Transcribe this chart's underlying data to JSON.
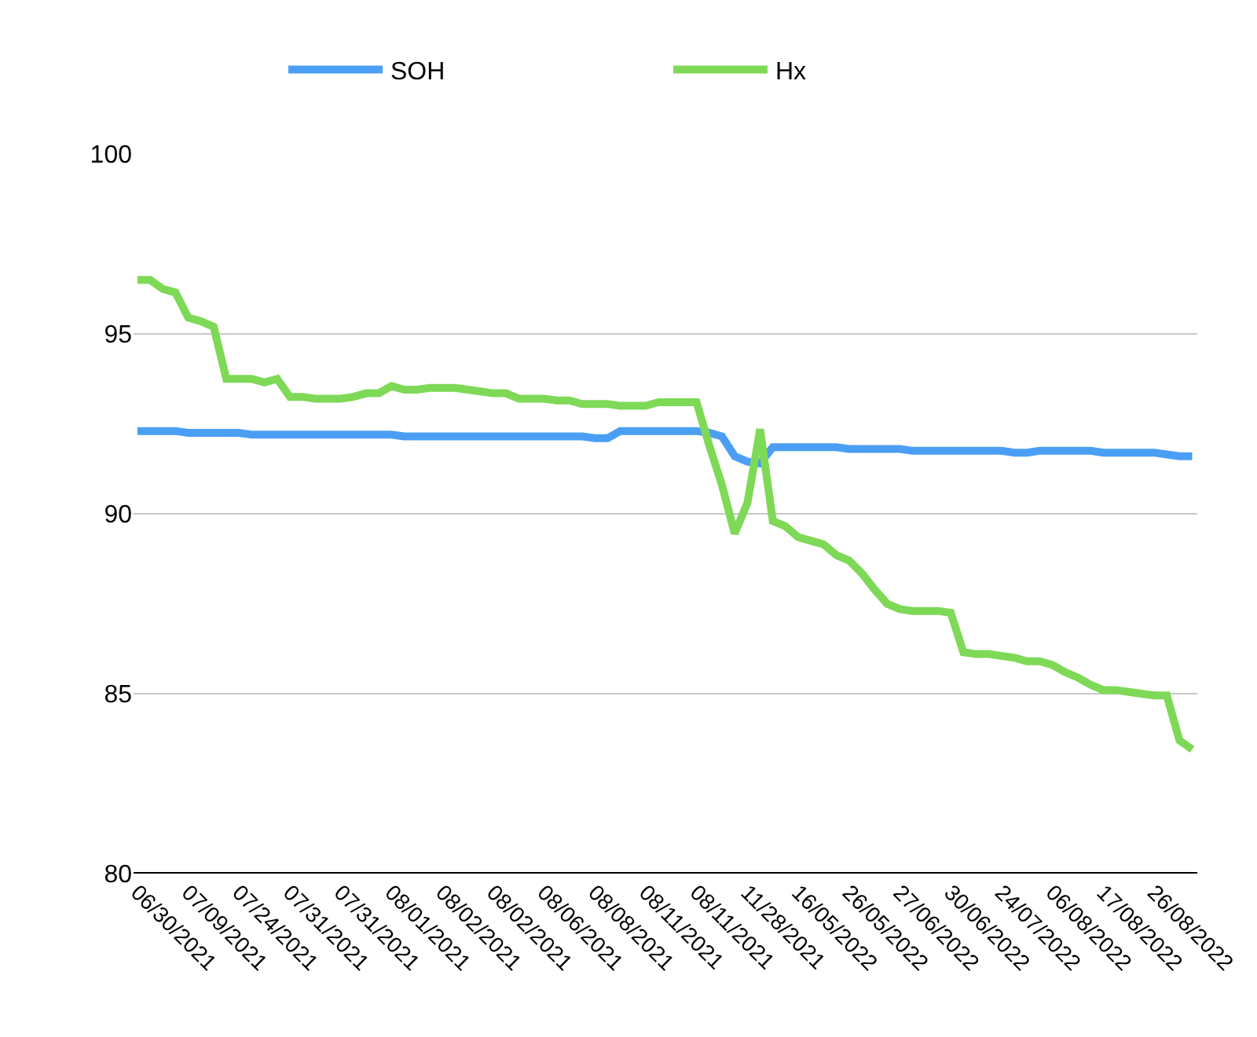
{
  "chart_data": {
    "type": "line",
    "categories": [
      "06/30/2021",
      null,
      null,
      null,
      "07/09/2021",
      null,
      null,
      null,
      "07/24/2021",
      null,
      null,
      null,
      "07/31/2021",
      null,
      null,
      null,
      "07/31/2021",
      null,
      null,
      null,
      "08/01/2021",
      null,
      null,
      null,
      "08/02/2021",
      null,
      null,
      null,
      "08/02/2021",
      null,
      null,
      null,
      "08/06/2021",
      null,
      null,
      null,
      "08/08/2021",
      null,
      null,
      null,
      "08/11/2021",
      null,
      null,
      null,
      "08/11/2021",
      null,
      null,
      null,
      "11/28/2021",
      null,
      null,
      null,
      "16/05/2022",
      null,
      null,
      null,
      "26/05/2022",
      null,
      null,
      null,
      "27/06/2022",
      null,
      null,
      null,
      "30/06/2022",
      null,
      null,
      null,
      "24/07/2022",
      null,
      null,
      null,
      "06/08/2022",
      null,
      null,
      null,
      "17/08/2022",
      null,
      null,
      null,
      "26/08/2022",
      null,
      null,
      null
    ],
    "series": [
      {
        "name": "SOH",
        "color": "#4a9ff5",
        "values": [
          92.3,
          92.3,
          92.3,
          92.3,
          92.25,
          92.25,
          92.25,
          92.25,
          92.25,
          92.2,
          92.2,
          92.2,
          92.2,
          92.2,
          92.2,
          92.2,
          92.2,
          92.2,
          92.2,
          92.2,
          92.2,
          92.15,
          92.15,
          92.15,
          92.15,
          92.15,
          92.15,
          92.15,
          92.15,
          92.15,
          92.15,
          92.15,
          92.15,
          92.15,
          92.15,
          92.15,
          92.1,
          92.1,
          92.3,
          92.3,
          92.3,
          92.3,
          92.3,
          92.3,
          92.3,
          92.25,
          92.15,
          91.6,
          91.45,
          91.4,
          91.85,
          91.85,
          91.85,
          91.85,
          91.85,
          91.85,
          91.8,
          91.8,
          91.8,
          91.8,
          91.8,
          91.75,
          91.75,
          91.75,
          91.75,
          91.75,
          91.75,
          91.75,
          91.75,
          91.7,
          91.7,
          91.75,
          91.75,
          91.75,
          91.75,
          91.75,
          91.7,
          91.7,
          91.7,
          91.7,
          91.7,
          91.65,
          91.6,
          91.6
        ]
      },
      {
        "name": "Hx",
        "color": "#7ed957",
        "values": [
          96.5,
          96.5,
          96.25,
          96.15,
          95.45,
          95.35,
          95.2,
          93.75,
          93.75,
          93.75,
          93.65,
          93.75,
          93.25,
          93.25,
          93.2,
          93.2,
          93.2,
          93.25,
          93.35,
          93.35,
          93.55,
          93.45,
          93.45,
          93.5,
          93.5,
          93.5,
          93.45,
          93.4,
          93.35,
          93.35,
          93.2,
          93.2,
          93.2,
          93.15,
          93.15,
          93.05,
          93.05,
          93.05,
          93.0,
          93.0,
          93.0,
          93.1,
          93.1,
          93.1,
          93.1,
          91.9,
          90.8,
          89.45,
          90.3,
          92.35,
          89.8,
          89.65,
          89.35,
          89.25,
          89.15,
          88.85,
          88.7,
          88.35,
          87.9,
          87.5,
          87.35,
          87.3,
          87.3,
          87.3,
          87.25,
          86.15,
          86.1,
          86.1,
          86.05,
          86.0,
          85.9,
          85.9,
          85.8,
          85.6,
          85.45,
          85.25,
          85.1,
          85.1,
          85.05,
          85.0,
          84.95,
          84.95,
          83.7,
          83.45
        ]
      }
    ],
    "ylim": [
      80,
      100
    ],
    "yticks": [
      80,
      85,
      90,
      95,
      100
    ],
    "grid": "y",
    "legend": "top",
    "line_style": "solid",
    "marker": "none"
  }
}
